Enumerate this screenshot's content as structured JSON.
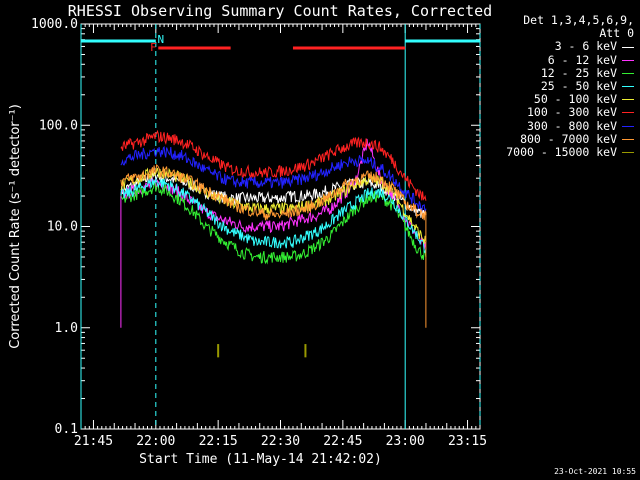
{
  "chart_data": {
    "type": "line",
    "title": "RHESSI Observing Summary Count Rates, Corrected",
    "xlabel": "Start Time (11-May-14 21:42:02)",
    "ylabel": "Corrected Count Rate (s⁻¹ detector⁻¹)",
    "yscale": "log",
    "ylim": [
      0.1,
      1000
    ],
    "xlim_minutes": [
      21.7,
      23.3
    ],
    "xticks": [
      "21:45",
      "22:00",
      "22:15",
      "22:30",
      "22:45",
      "23:00",
      "23:15"
    ],
    "xtick_values": [
      21.75,
      22.0,
      22.25,
      22.5,
      22.75,
      23.0,
      23.25
    ],
    "yticks": [
      "0.1",
      "1.0",
      "10.0",
      "100.0",
      "1000.0"
    ],
    "ytick_values": [
      0.1,
      1,
      10,
      100,
      1000
    ],
    "legend_header": [
      "Det 1,3,4,5,6,9,",
      "Att 0"
    ],
    "legend_position": "right-outside",
    "x": [
      21.86,
      21.9,
      21.95,
      22.0,
      22.05,
      22.1,
      22.15,
      22.2,
      22.25,
      22.3,
      22.35,
      22.4,
      22.45,
      22.5,
      22.55,
      22.6,
      22.65,
      22.7,
      22.75,
      22.8,
      22.85,
      22.9,
      22.95,
      23.0,
      23.05,
      23.083
    ],
    "series": [
      {
        "name": "3 - 6 keV",
        "color": "#ffffff",
        "values": [
          22,
          25,
          28,
          32,
          30,
          28,
          25,
          22,
          20,
          19,
          19,
          19,
          19,
          19,
          20,
          20,
          21,
          23,
          25,
          26,
          27,
          25,
          21,
          17,
          14,
          13
        ]
      },
      {
        "name": "6 - 12 keV",
        "color": "#ff33ff",
        "values": [
          20,
          22,
          24,
          27,
          25,
          21,
          17,
          14,
          12,
          11,
          10,
          10,
          10,
          10,
          11,
          12,
          13,
          15,
          20,
          28,
          70,
          30,
          20,
          12,
          8,
          6
        ]
      },
      {
        "name": "12 - 25 keV",
        "color": "#33ee33",
        "values": [
          18,
          20,
          22,
          25,
          22,
          18,
          14,
          10,
          8,
          6.5,
          5.5,
          5,
          5,
          5,
          5,
          5.5,
          6.5,
          8,
          11,
          15,
          19,
          20,
          16,
          10,
          6,
          5
        ]
      },
      {
        "name": "25 - 50 keV",
        "color": "#33ffff",
        "values": [
          20,
          22,
          25,
          28,
          26,
          22,
          18,
          14,
          11,
          9,
          8,
          7,
          7,
          7,
          7,
          8,
          9,
          11,
          14,
          17,
          21,
          22,
          18,
          12,
          8,
          6
        ]
      },
      {
        "name": "50 - 100 keV",
        "color": "#eeee33",
        "values": [
          25,
          28,
          31,
          35,
          33,
          30,
          26,
          22,
          19,
          17,
          16,
          15,
          15,
          15,
          15,
          16,
          17,
          19,
          22,
          26,
          29,
          28,
          22,
          14,
          9,
          7
        ]
      },
      {
        "name": "100 - 300 keV",
        "color": "#ff2222",
        "values": [
          60,
          65,
          70,
          78,
          75,
          70,
          60,
          50,
          42,
          37,
          35,
          34,
          34,
          35,
          37,
          40,
          45,
          52,
          60,
          66,
          68,
          60,
          45,
          30,
          22,
          18
        ]
      },
      {
        "name": "300 - 800 keV",
        "color": "#2222ff",
        "values": [
          45,
          48,
          52,
          56,
          54,
          50,
          43,
          36,
          31,
          28,
          27,
          27,
          27,
          27,
          28,
          30,
          33,
          37,
          42,
          45,
          44,
          38,
          30,
          22,
          17,
          15
        ]
      },
      {
        "name": "800 - 7000 keV",
        "color": "#ff9933",
        "values": [
          28,
          30,
          32,
          36,
          34,
          31,
          27,
          23,
          20,
          17,
          15,
          14,
          13,
          13,
          14,
          15,
          17,
          20,
          25,
          29,
          31,
          30,
          24,
          17,
          14,
          13
        ]
      },
      {
        "name": "7000 - 15000 keV",
        "color": "#999900",
        "values": [
          null,
          null,
          null,
          null,
          null,
          null,
          null,
          null,
          0.6,
          null,
          null,
          null,
          null,
          null,
          null,
          0.6,
          null,
          null,
          null,
          null,
          null,
          null,
          null,
          null,
          null,
          null
        ]
      }
    ],
    "annotations": {
      "letters": [
        {
          "text": "F",
          "color": "#ff2222",
          "x": 21.99
        },
        {
          "text": "N",
          "color": "#33ffff",
          "x": 22.02
        }
      ],
      "flare_bars": [
        [
          22.01,
          22.3
        ],
        [
          22.55,
          23.0
        ]
      ],
      "night_bars": [
        [
          21.7,
          22.0
        ],
        [
          23.0,
          23.3
        ]
      ],
      "solid_vlines": [
        21.7,
        23.0
      ],
      "dashed_vlines": [
        22.0,
        23.3
      ]
    }
  },
  "timestamp": "23-Oct-2021 10:55"
}
